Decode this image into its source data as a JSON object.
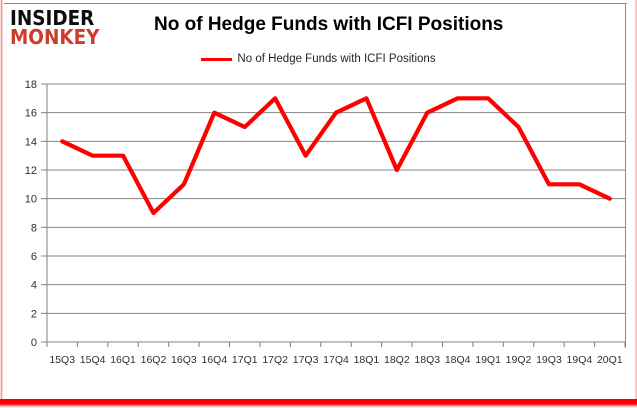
{
  "logo": {
    "line1": "INSIDER",
    "line2": "MONKEY",
    "line2_color": "#cf3c2b"
  },
  "header": {
    "title": "No of Hedge Funds with ICFI Positions"
  },
  "legend": {
    "label": "No of Hedge Funds with ICFI Positions"
  },
  "colors": {
    "series": "#fe0000",
    "grid": "#848484",
    "axis": "#808080",
    "tick_label": "#303030",
    "frame": "#8c8c8c"
  },
  "chart_data": {
    "type": "line",
    "title": "No of Hedge Funds with ICFI Positions",
    "categories": [
      "15Q3",
      "15Q4",
      "16Q1",
      "16Q2",
      "16Q3",
      "16Q4",
      "17Q1",
      "17Q2",
      "17Q3",
      "17Q4",
      "18Q1",
      "18Q2",
      "18Q3",
      "18Q4",
      "19Q1",
      "19Q2",
      "19Q3",
      "19Q4",
      "20Q1"
    ],
    "series": [
      {
        "name": "No of Hedge Funds with ICFI Positions",
        "color": "#fe0000",
        "values": [
          14,
          13,
          13,
          9,
          11,
          16,
          15,
          17,
          13,
          16,
          17,
          12,
          16,
          17,
          17,
          15,
          11,
          11,
          10
        ]
      }
    ],
    "xlabel": "",
    "ylabel": "",
    "ylim": [
      0,
      18
    ],
    "ytick_step": 2,
    "grid": true,
    "legend_position": "top-center"
  }
}
